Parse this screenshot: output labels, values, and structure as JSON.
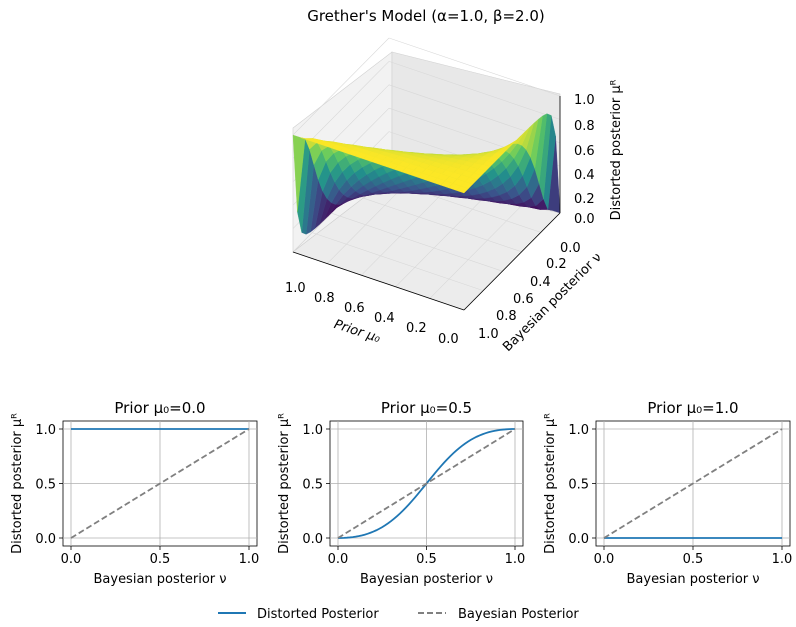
{
  "figure": {
    "suptitle": "Grether's Model (α=1.0, β=2.0)"
  },
  "surface": {
    "xlabel": "Prior μ₀",
    "ylabel": "Bayesian posterior ν",
    "zlabel": "Distorted posterior μᴿ",
    "x_ticks": [
      "0.0",
      "0.2",
      "0.4",
      "0.6",
      "0.8",
      "1.0"
    ],
    "y_ticks": [
      "0.0",
      "0.2",
      "0.4",
      "0.6",
      "0.8",
      "1.0"
    ],
    "z_ticks": [
      "0.0",
      "0.2",
      "0.4",
      "0.6",
      "0.8",
      "1.0"
    ],
    "colormap": "viridis"
  },
  "panels": [
    {
      "title": "Prior μ₀=0.0"
    },
    {
      "title": "Prior μ₀=0.5"
    },
    {
      "title": "Prior μ₀=1.0"
    }
  ],
  "axes2d": {
    "xlabel": "Bayesian posterior ν",
    "ylabel": "Distorted posterior μᴿ",
    "x_ticks": [
      "0.0",
      "0.5",
      "1.0"
    ],
    "y_ticks": [
      "0.0",
      "0.5",
      "1.0"
    ]
  },
  "legend": {
    "distorted": "Distorted Posterior",
    "bayesian": "Bayesian Posterior"
  },
  "colors": {
    "distorted": "#1f77b4",
    "bayesian": "#808080"
  },
  "chart_data": [
    {
      "type": "surface",
      "model": "mu_R = nu^alpha * (1-mu0)^beta-weighted Grether distortion",
      "alpha": 1.0,
      "beta": 2.0,
      "x": "prior mu0 in [0,1]",
      "y": "bayesian posterior nu in [0,1]",
      "zlim": [
        0,
        1
      ]
    },
    {
      "type": "line",
      "x": [
        0,
        0.1,
        0.2,
        0.3,
        0.4,
        0.5,
        0.6,
        0.7,
        0.8,
        0.9,
        1.0
      ],
      "series": [
        {
          "name": "Distorted Posterior",
          "values": [
            1,
            1,
            1,
            1,
            1,
            1,
            1,
            1,
            1,
            1,
            1
          ]
        },
        {
          "name": "Bayesian Posterior",
          "values": [
            0,
            0.1,
            0.2,
            0.3,
            0.4,
            0.5,
            0.6,
            0.7,
            0.8,
            0.9,
            1.0
          ]
        }
      ],
      "xlim": [
        0,
        1
      ],
      "ylim": [
        0,
        1
      ]
    },
    {
      "type": "line",
      "x": [
        0,
        0.1,
        0.2,
        0.3,
        0.4,
        0.5,
        0.6,
        0.7,
        0.8,
        0.9,
        1.0
      ],
      "series": [
        {
          "name": "Distorted Posterior",
          "values": [
            0,
            0.012,
            0.059,
            0.155,
            0.308,
            0.5,
            0.692,
            0.845,
            0.941,
            0.988,
            1.0
          ]
        },
        {
          "name": "Bayesian Posterior",
          "values": [
            0,
            0.1,
            0.2,
            0.3,
            0.4,
            0.5,
            0.6,
            0.7,
            0.8,
            0.9,
            1.0
          ]
        }
      ],
      "xlim": [
        0,
        1
      ],
      "ylim": [
        0,
        1
      ]
    },
    {
      "type": "line",
      "x": [
        0,
        0.1,
        0.2,
        0.3,
        0.4,
        0.5,
        0.6,
        0.7,
        0.8,
        0.9,
        1.0
      ],
      "series": [
        {
          "name": "Distorted Posterior",
          "values": [
            0,
            0,
            0,
            0,
            0,
            0,
            0,
            0,
            0,
            0,
            0
          ]
        },
        {
          "name": "Bayesian Posterior",
          "values": [
            0,
            0.1,
            0.2,
            0.3,
            0.4,
            0.5,
            0.6,
            0.7,
            0.8,
            0.9,
            1.0
          ]
        }
      ],
      "xlim": [
        0,
        1
      ],
      "ylim": [
        0,
        1
      ]
    }
  ]
}
